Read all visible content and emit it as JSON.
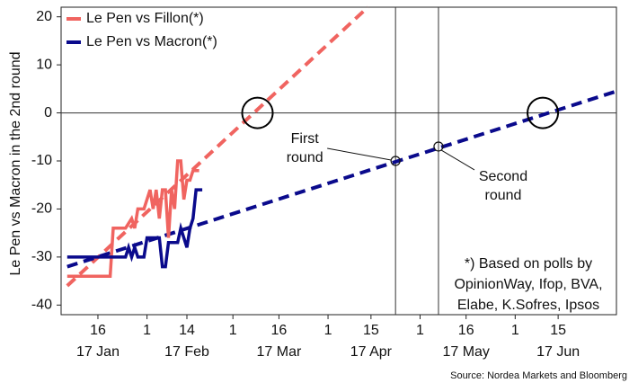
{
  "chart_data": {
    "type": "line",
    "ylabel": "Le Pen vs Macron in the 2nd round",
    "source": "Source: Nordea Markets and Bloomberg",
    "note": [
      "*) Based on polls by",
      "OpinionWay, Ifop, BVA,",
      "Elabe, K.Sofres, Ipsos"
    ],
    "xlim": [
      "2017-01-04",
      "2017-07-04"
    ],
    "ylim": [
      -42,
      22
    ],
    "yticks": [
      -40,
      -30,
      -20,
      -10,
      0,
      10,
      20
    ],
    "zero_line": true,
    "xticks": [
      {
        "value": "2017-01-16",
        "label": "16"
      },
      {
        "value": "2017-02-01",
        "label": "1"
      },
      {
        "value": "2017-02-14",
        "label": "14"
      },
      {
        "value": "2017-03-01",
        "label": "1"
      },
      {
        "value": "2017-03-16",
        "label": "16"
      },
      {
        "value": "2017-04-01",
        "label": "1"
      },
      {
        "value": "2017-04-15",
        "label": "15"
      },
      {
        "value": "2017-05-01",
        "label": "1"
      },
      {
        "value": "2017-05-16",
        "label": "16"
      },
      {
        "value": "2017-06-01",
        "label": "1"
      },
      {
        "value": "2017-06-15",
        "label": "15"
      }
    ],
    "month_labels": [
      {
        "value": "2017-01-16",
        "label": "17 Jan"
      },
      {
        "value": "2017-02-14",
        "label": "17 Feb"
      },
      {
        "value": "2017-03-16",
        "label": "17 Mar"
      },
      {
        "value": "2017-04-15",
        "label": "17 Apr"
      },
      {
        "value": "2017-05-16",
        "label": "17 May"
      },
      {
        "value": "2017-06-15",
        "label": "17 Jun"
      }
    ],
    "legend": "upper left",
    "series": [
      {
        "name": "Le Pen vs Fillon(*)",
        "color": "#f06460",
        "x": [
          "2017-01-06",
          "2017-01-20",
          "2017-01-21",
          "2017-01-25",
          "2017-01-27",
          "2017-01-28",
          "2017-01-29",
          "2017-01-31",
          "2017-02-01",
          "2017-02-02",
          "2017-02-03",
          "2017-02-04",
          "2017-02-05",
          "2017-02-06",
          "2017-02-07",
          "2017-02-08",
          "2017-02-09",
          "2017-02-10",
          "2017-02-11",
          "2017-02-12",
          "2017-02-13",
          "2017-02-14",
          "2017-02-15",
          "2017-02-16",
          "2017-02-18"
        ],
        "values": [
          -34,
          -34,
          -24,
          -24,
          -22,
          -24,
          -20,
          -20,
          -18,
          -16,
          -20,
          -16,
          -22,
          -16,
          -16,
          -26,
          -16,
          -20,
          -10,
          -10,
          -18,
          -14,
          -14,
          -12,
          -12
        ]
      },
      {
        "name": "Le Pen vs Macron(*)",
        "color": "#0a0a8c",
        "x": [
          "2017-01-06",
          "2017-01-25",
          "2017-01-26",
          "2017-01-27",
          "2017-01-28",
          "2017-01-29",
          "2017-01-31",
          "2017-02-01",
          "2017-02-05",
          "2017-02-06",
          "2017-02-07",
          "2017-02-08",
          "2017-02-11",
          "2017-02-12",
          "2017-02-13",
          "2017-02-14",
          "2017-02-15",
          "2017-02-16",
          "2017-02-17",
          "2017-02-19"
        ],
        "values": [
          -30,
          -30,
          -28,
          -30,
          -28,
          -30,
          -30,
          -26,
          -26,
          -32,
          -32,
          -27,
          -27,
          -24,
          -26,
          -28,
          -24,
          -22,
          -16,
          -16
        ]
      }
    ],
    "trend_lines": [
      {
        "color": "#f06460",
        "x": [
          "2017-01-06",
          "2017-04-14"
        ],
        "values": [
          -36,
          22
        ]
      },
      {
        "color": "#0a0a8c",
        "x": [
          "2017-01-06",
          "2017-07-04"
        ],
        "values": [
          -32,
          4.5
        ]
      }
    ],
    "events": [
      {
        "x": "2017-04-23",
        "y": -10,
        "label": [
          "First",
          "round"
        ]
      },
      {
        "x": "2017-05-07",
        "y": -7,
        "label": [
          "Second",
          "round"
        ]
      }
    ],
    "circled_points": [
      {
        "x": "2017-03-09",
        "y": 0
      },
      {
        "x": "2017-06-10",
        "y": 0
      }
    ]
  }
}
